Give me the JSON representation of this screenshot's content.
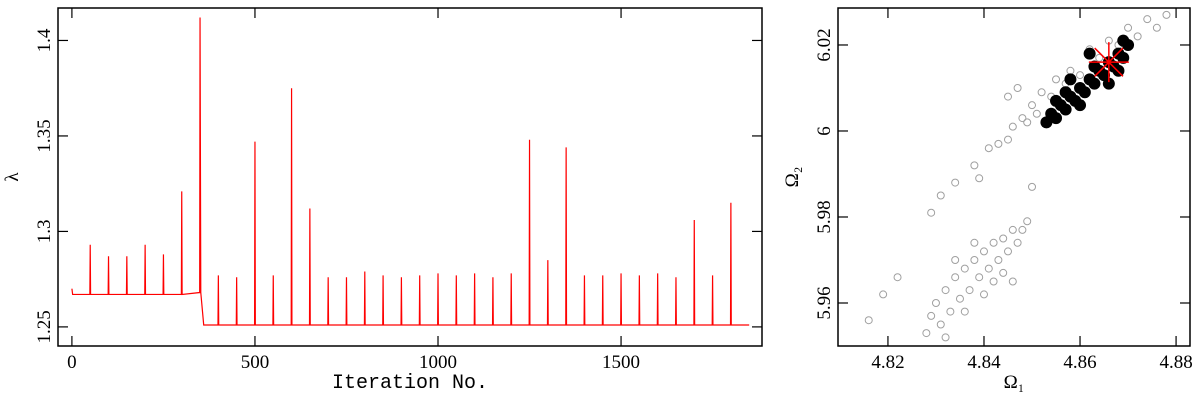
{
  "chart_data": [
    {
      "type": "line",
      "xlabel": "Iteration No.",
      "ylabel": "λ",
      "xlim": [
        -38,
        1885
      ],
      "ylim": [
        1.24,
        1.417
      ],
      "xticks": [
        0,
        500,
        1000,
        1500
      ],
      "yticks": [
        1.25,
        1.3,
        1.35,
        1.4
      ],
      "series": [
        {
          "color": "#ff0000",
          "x": [
            0,
            2,
            49,
            50,
            51,
            99,
            100,
            101,
            149,
            150,
            151,
            199,
            200,
            201,
            249,
            250,
            251,
            299,
            300,
            301,
            349,
            350,
            352,
            360,
            399,
            400,
            401,
            449,
            450,
            451,
            499,
            500,
            501,
            549,
            550,
            551,
            599,
            600,
            601,
            649,
            650,
            651,
            699,
            700,
            701,
            749,
            750,
            751,
            799,
            800,
            801,
            849,
            850,
            851,
            899,
            900,
            901,
            949,
            950,
            951,
            999,
            1000,
            1001,
            1049,
            1050,
            1051,
            1099,
            1100,
            1101,
            1149,
            1150,
            1151,
            1199,
            1200,
            1201,
            1249,
            1250,
            1251,
            1299,
            1300,
            1301,
            1349,
            1350,
            1351,
            1399,
            1400,
            1401,
            1449,
            1450,
            1451,
            1499,
            1500,
            1501,
            1549,
            1550,
            1551,
            1599,
            1600,
            1601,
            1649,
            1650,
            1651,
            1699,
            1700,
            1701,
            1749,
            1750,
            1751,
            1799,
            1800,
            1801,
            1850
          ],
          "values": [
            1.27,
            1.267,
            1.267,
            1.293,
            1.267,
            1.267,
            1.287,
            1.267,
            1.267,
            1.287,
            1.267,
            1.267,
            1.293,
            1.267,
            1.267,
            1.288,
            1.267,
            1.267,
            1.321,
            1.267,
            1.268,
            1.412,
            1.268,
            1.251,
            1.251,
            1.277,
            1.251,
            1.251,
            1.276,
            1.251,
            1.251,
            1.347,
            1.251,
            1.251,
            1.277,
            1.251,
            1.251,
            1.375,
            1.251,
            1.251,
            1.312,
            1.251,
            1.251,
            1.276,
            1.251,
            1.251,
            1.276,
            1.251,
            1.251,
            1.279,
            1.251,
            1.251,
            1.277,
            1.251,
            1.251,
            1.276,
            1.251,
            1.251,
            1.277,
            1.251,
            1.251,
            1.278,
            1.251,
            1.251,
            1.277,
            1.251,
            1.251,
            1.278,
            1.251,
            1.251,
            1.276,
            1.251,
            1.251,
            1.278,
            1.251,
            1.251,
            1.348,
            1.251,
            1.251,
            1.285,
            1.251,
            1.251,
            1.344,
            1.251,
            1.251,
            1.277,
            1.251,
            1.251,
            1.277,
            1.251,
            1.251,
            1.278,
            1.251,
            1.251,
            1.277,
            1.251,
            1.251,
            1.278,
            1.251,
            1.251,
            1.276,
            1.251,
            1.251,
            1.306,
            1.251,
            1.251,
            1.277,
            1.251,
            1.251,
            1.315,
            1.251,
            1.251
          ]
        }
      ]
    },
    {
      "type": "scatter",
      "xlabel": "Ω₁",
      "ylabel": "Ω₂",
      "xlim": [
        4.8096,
        4.8829
      ],
      "ylim": [
        5.95,
        6.0286
      ],
      "xticks": [
        4.82,
        4.84,
        4.86,
        4.88
      ],
      "yticks": [
        5.96,
        5.98,
        6,
        6.02
      ],
      "series": [
        {
          "color": "#a0a0a0",
          "marker": "open",
          "x": [
            4.816,
            4.819,
            4.822,
            4.829,
            4.831,
            4.834,
            4.838,
            4.839,
            4.841,
            4.843,
            4.845,
            4.846,
            4.848,
            4.849,
            4.85,
            4.851,
            4.852,
            4.854,
            4.855,
            4.857,
            4.858,
            4.86,
            4.862,
            4.864,
            4.866,
            4.868,
            4.87,
            4.872,
            4.874,
            4.876,
            4.878,
            4.85,
            4.845,
            4.847,
            4.83,
            4.832,
            4.834,
            4.836,
            4.838,
            4.84,
            4.842,
            4.844,
            4.846,
            4.833,
            4.835,
            4.837,
            4.839,
            4.841,
            4.843,
            4.845,
            4.847,
            4.831,
            4.836,
            4.84,
            4.842,
            4.844,
            4.838,
            4.834,
            4.848,
            4.849,
            4.829,
            4.828,
            4.832,
            4.846
          ],
          "values": [
            5.956,
            5.962,
            5.966,
            5.981,
            5.985,
            5.988,
            5.992,
            5.989,
            5.996,
            5.997,
            5.998,
            6.001,
            6.003,
            6.002,
            6.006,
            6.004,
            6.009,
            6.008,
            6.012,
            6.011,
            6.014,
            6.013,
            6.019,
            6.017,
            6.021,
            6.02,
            6.024,
            6.022,
            6.026,
            6.024,
            6.027,
            5.987,
            6.008,
            6.01,
            5.96,
            5.963,
            5.966,
            5.968,
            5.97,
            5.972,
            5.974,
            5.975,
            5.977,
            5.958,
            5.961,
            5.963,
            5.966,
            5.968,
            5.97,
            5.972,
            5.974,
            5.955,
            5.958,
            5.962,
            5.965,
            5.967,
            5.974,
            5.97,
            5.977,
            5.979,
            5.957,
            5.953,
            5.952,
            5.965
          ]
        },
        {
          "color": "#000000",
          "marker": "filled",
          "x": [
            4.853,
            4.854,
            4.855,
            4.856,
            4.857,
            4.858,
            4.859,
            4.86,
            4.861,
            4.862,
            4.863,
            4.864,
            4.865,
            4.866,
            4.867,
            4.868,
            4.869,
            4.87,
            4.857,
            4.86,
            4.863,
            4.866,
            4.868,
            4.858,
            4.862,
            4.869,
            4.855
          ],
          "values": [
            6.002,
            6.004,
            6.003,
            6.006,
            6.005,
            6.008,
            6.007,
            6.01,
            6.009,
            6.012,
            6.011,
            6.014,
            6.013,
            6.016,
            6.015,
            6.018,
            6.017,
            6.02,
            6.009,
            6.006,
            6.015,
            6.011,
            6.014,
            6.012,
            6.018,
            6.021,
            6.007
          ]
        },
        {
          "color": "#ff0000",
          "marker": "star",
          "x": [
            4.866
          ],
          "values": [
            6.016
          ]
        }
      ]
    }
  ]
}
